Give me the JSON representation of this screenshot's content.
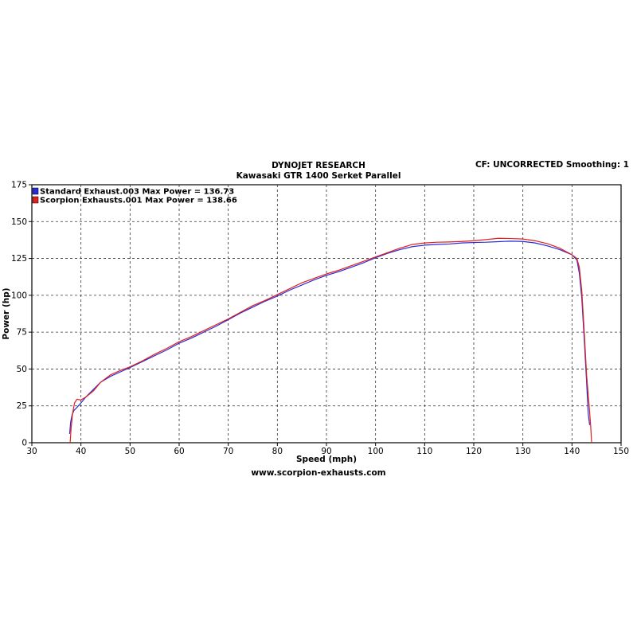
{
  "header": {
    "title_line1": "DYNOJET RESEARCH",
    "title_line2": "Kawasaki GTR 1400 Serket Parallel",
    "settings": "CF: UNCORRECTED  Smoothing: 1"
  },
  "footer": {
    "website": "www.scorpion-exhausts.com"
  },
  "chart_data": {
    "type": "line",
    "title": "DYNOJET RESEARCH",
    "subtitle": "Kawasaki GTR 1400 Serket Parallel",
    "xlabel": "Speed (mph)",
    "ylabel": "Power (hp)",
    "xlim": [
      30,
      150
    ],
    "ylim": [
      0,
      175
    ],
    "xticks": [
      30,
      40,
      50,
      60,
      70,
      80,
      90,
      100,
      110,
      120,
      130,
      140,
      150
    ],
    "yticks": [
      0,
      25,
      50,
      75,
      100,
      125,
      150,
      175
    ],
    "grid": true,
    "legend_position": "top-left",
    "series": [
      {
        "name": "Standard Exhaust.003 Max Power = 136.73",
        "color": "#2b2bd6",
        "x": [
          37.7,
          37.9,
          38.2,
          38.6,
          39.2,
          40,
          41,
          42.5,
          44,
          46,
          48,
          50,
          52.5,
          55,
          57.5,
          60,
          62.5,
          65,
          67.5,
          70,
          72.5,
          75,
          77.5,
          80,
          82.5,
          85,
          87.5,
          90,
          92.5,
          95,
          97.5,
          100,
          102.5,
          105,
          107.5,
          110,
          112.5,
          115,
          117.5,
          120,
          122.5,
          125,
          127.5,
          130,
          132.5,
          135,
          137.5,
          140,
          141,
          141.5,
          142,
          142.5,
          143,
          143.3,
          143.6
        ],
        "y": [
          6,
          14,
          19,
          22,
          24,
          27,
          31,
          36,
          41,
          45,
          48,
          51,
          55,
          59,
          63,
          67.5,
          71,
          75,
          79,
          83.5,
          88,
          92,
          96,
          99.5,
          103.5,
          107,
          110.5,
          113.5,
          116,
          119,
          122,
          125.5,
          128.5,
          131,
          133,
          134,
          134.5,
          134.8,
          135.5,
          135.8,
          136,
          136.4,
          136.73,
          136.5,
          135.5,
          133.5,
          131,
          127.5,
          124,
          115,
          98,
          70,
          40,
          20,
          12
        ]
      },
      {
        "name": "Scorpion Exhausts.001 Max Power = 138.66",
        "color": "#e02020",
        "x": [
          37.8,
          38,
          38.3,
          38.7,
          39.2,
          40,
          41,
          42.5,
          44,
          46,
          48,
          50,
          52.5,
          55,
          57.5,
          60,
          62.5,
          65,
          67.5,
          70,
          72.5,
          75,
          77.5,
          80,
          82.5,
          85,
          87.5,
          90,
          92.5,
          95,
          97.5,
          100,
          102.5,
          105,
          107.5,
          110,
          112.5,
          115,
          117.5,
          120,
          122.5,
          125,
          127.5,
          130,
          132.5,
          135,
          137.5,
          140,
          141,
          141.5,
          142,
          142.5,
          143,
          143.5,
          143.8,
          144
        ],
        "y": [
          0,
          10,
          20,
          27,
          29.5,
          29,
          31,
          35,
          41,
          46,
          49,
          51.5,
          55.5,
          60,
          64,
          68.5,
          72,
          76,
          80,
          84,
          88.5,
          93,
          96.5,
          100.5,
          104.5,
          108.5,
          111.5,
          114.5,
          117,
          120,
          123,
          126,
          129,
          132,
          134.5,
          135.5,
          136,
          136.2,
          136.5,
          137,
          137.8,
          138.66,
          138.5,
          138.2,
          137,
          135,
          132,
          127.5,
          125,
          119,
          103,
          75,
          45,
          25,
          12,
          0
        ]
      }
    ]
  }
}
